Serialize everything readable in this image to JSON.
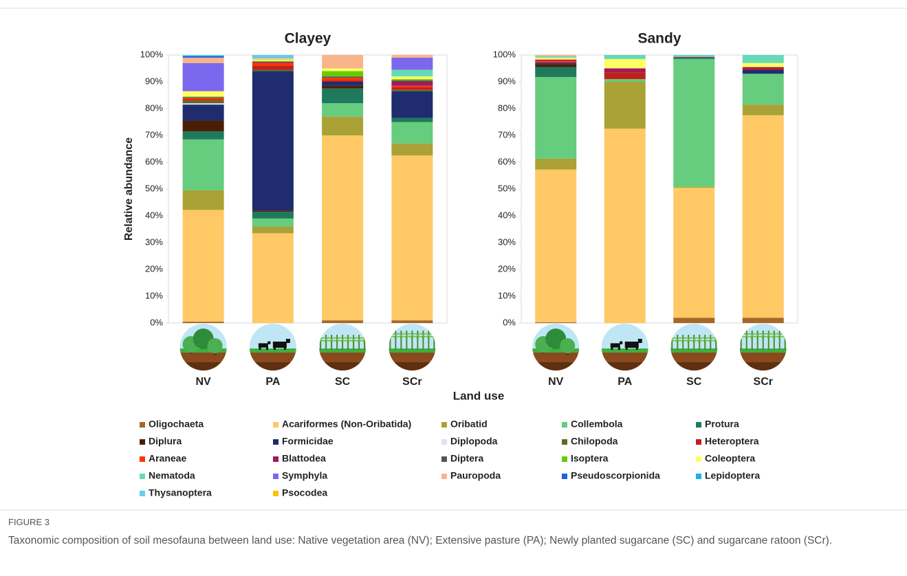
{
  "chart_data": {
    "type": "bar",
    "stacked": true,
    "panels": [
      "Clayey",
      "Sandy"
    ],
    "y_label": "Relative abundance",
    "x_label": "Land use",
    "categories": [
      "NV",
      "PA",
      "SC",
      "SCr",
      "NV",
      "PA",
      "SC",
      "SCr"
    ],
    "ylim": [
      0,
      100
    ],
    "yticks": [
      {
        "value": 0,
        "label": "0%"
      },
      {
        "value": 10,
        "label": "10%"
      },
      {
        "value": 20,
        "label": "20%"
      },
      {
        "value": 30,
        "label": "30%"
      },
      {
        "value": 40,
        "label": "40%"
      },
      {
        "value": 50,
        "label": "50%"
      },
      {
        "value": 60,
        "label": "60%"
      },
      {
        "value": 70,
        "label": "70%"
      },
      {
        "value": 80,
        "label": "80%"
      },
      {
        "value": 90,
        "label": "90%"
      },
      {
        "value": 100,
        "label": "100%"
      }
    ],
    "series": [
      {
        "name": "Oligochaeta",
        "color": "#a5682a",
        "values": [
          0.5,
          0,
          1,
          1,
          0.3,
          0,
          2,
          2
        ]
      },
      {
        "name": "Acariformes (Non-Oribatida)",
        "color": "#ffc966",
        "values": [
          41.7,
          33.5,
          69,
          61.5,
          57,
          72.5,
          48.5,
          75.5
        ]
      },
      {
        "name": "Oribatid",
        "color": "#aaa236",
        "values": [
          7.3,
          2.5,
          7,
          4.5,
          4,
          17.5,
          0.3,
          4
        ]
      },
      {
        "name": "Collembola",
        "color": "#66cc7e",
        "values": [
          19,
          3,
          5,
          8,
          30.5,
          1,
          47.7,
          11.5
        ]
      },
      {
        "name": "Protura",
        "color": "#1f7a5c",
        "values": [
          3,
          2.5,
          5.5,
          1.5,
          3.7,
          0,
          0.5,
          0
        ]
      },
      {
        "name": "Diplura",
        "color": "#4a1e05",
        "values": [
          4,
          0.5,
          1,
          0,
          1,
          0,
          0,
          0
        ]
      },
      {
        "name": "Formicidae",
        "color": "#1f2d6e",
        "values": [
          6,
          52,
          1.5,
          10,
          0.5,
          0,
          0,
          1.5
        ]
      },
      {
        "name": "Diplopoda",
        "color": "#dce3f5",
        "values": [
          0.5,
          0,
          0,
          0,
          0,
          0,
          0,
          0
        ]
      },
      {
        "name": "Chilopoda",
        "color": "#5c6b1f",
        "values": [
          1,
          0.5,
          0,
          0.5,
          0,
          0,
          0,
          0
        ]
      },
      {
        "name": "Heteroptera",
        "color": "#c0201c",
        "values": [
          0.5,
          1.5,
          0.5,
          1,
          0.5,
          2.5,
          0,
          0.5
        ]
      },
      {
        "name": "Araneae",
        "color": "#ff3300",
        "values": [
          0.5,
          1,
          1,
          0.5,
          0.3,
          0,
          0,
          0
        ]
      },
      {
        "name": "Blattodea",
        "color": "#a3195b",
        "values": [
          0,
          0.3,
          0,
          1.5,
          0.5,
          1.5,
          0.3,
          0.5
        ]
      },
      {
        "name": "Diptera",
        "color": "#555555",
        "values": [
          0.3,
          0.2,
          0.5,
          0.5,
          0,
          0,
          0,
          0
        ]
      },
      {
        "name": "Isoptera",
        "color": "#66cc00",
        "values": [
          0.2,
          0.3,
          2,
          0.5,
          0,
          0,
          0,
          0
        ]
      },
      {
        "name": "Coleoptera",
        "color": "#ffff66",
        "values": [
          2,
          0.5,
          1,
          1,
          0.7,
          3.5,
          0,
          1.5
        ]
      },
      {
        "name": "Nematoda",
        "color": "#66d9b8",
        "values": [
          0,
          0.2,
          0,
          2.5,
          0.5,
          1.5,
          0.7,
          3
        ]
      },
      {
        "name": "Symphyla",
        "color": "#7b68ee",
        "values": [
          10.5,
          0,
          0,
          4.5,
          0,
          0,
          0,
          0
        ]
      },
      {
        "name": "Pauropoda",
        "color": "#f9b48a",
        "values": [
          2,
          0.5,
          5,
          1,
          0.5,
          0,
          0,
          0
        ]
      },
      {
        "name": "Pseudoscorpionida",
        "color": "#1f5fe0",
        "values": [
          0.5,
          0,
          0,
          0,
          0,
          0,
          0,
          0
        ]
      },
      {
        "name": "Lepidoptera",
        "color": "#1ab2e6",
        "values": [
          0.3,
          0.2,
          0,
          0,
          0,
          0,
          0,
          0
        ]
      },
      {
        "name": "Thysanoptera",
        "color": "#66ccf0",
        "values": [
          0.2,
          0.8,
          0,
          0,
          0,
          0,
          0,
          0
        ]
      },
      {
        "name": "Psocodea",
        "color": "#ffc000",
        "values": [
          0,
          0,
          0,
          0,
          0,
          0,
          0,
          0
        ]
      }
    ]
  },
  "figure_label": "FIGURE 3",
  "caption": "Taxonomic composition of soil mesofauna between land use: Native vegetation area (NV); Extensive pasture (PA); Newly planted sugarcane (SC) and sugarcane ratoon (SCr)."
}
